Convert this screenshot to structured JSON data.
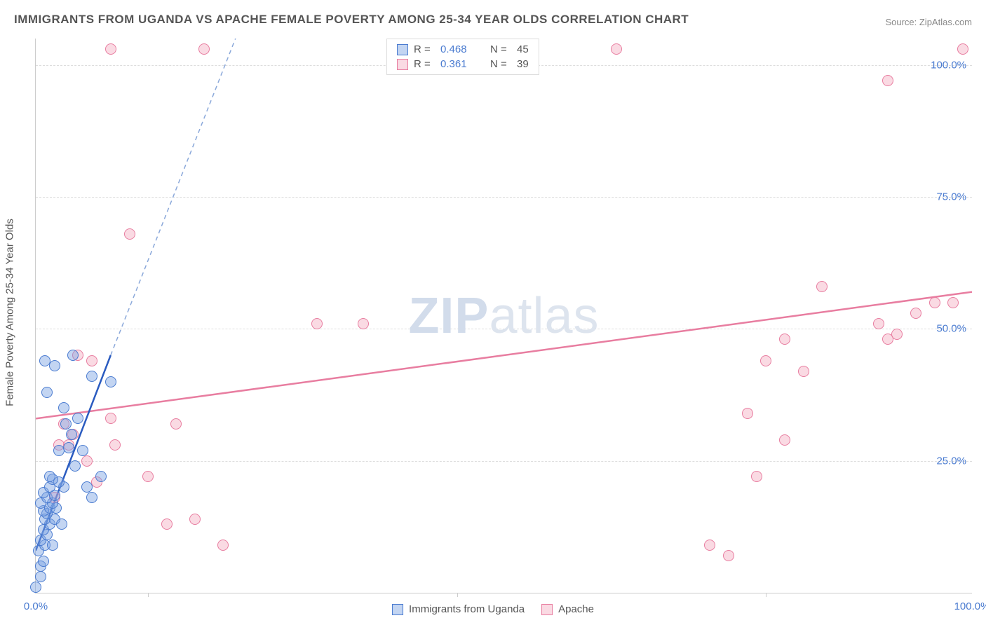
{
  "title": "IMMIGRANTS FROM UGANDA VS APACHE FEMALE POVERTY AMONG 25-34 YEAR OLDS CORRELATION CHART",
  "source": "Source: ZipAtlas.com",
  "ylabel": "Female Poverty Among 25-34 Year Olds",
  "watermark_a": "ZIP",
  "watermark_b": "atlas",
  "xlim": [
    0,
    100
  ],
  "ylim": [
    0,
    105
  ],
  "xticks": [
    {
      "pos": 0,
      "label": "0.0%"
    },
    {
      "pos": 100,
      "label": "100.0%"
    }
  ],
  "yticks": [
    {
      "pos": 25,
      "label": "25.0%"
    },
    {
      "pos": 50,
      "label": "50.0%"
    },
    {
      "pos": 75,
      "label": "75.0%"
    },
    {
      "pos": 100,
      "label": "100.0%"
    }
  ],
  "x_minor_ticks": [
    12,
    45,
    78
  ],
  "series": {
    "uganda": {
      "label": "Immigrants from Uganda",
      "color_fill": "rgba(122,162,226,0.45)",
      "color_stroke": "#4a7bd0",
      "R": "0.468",
      "N": "45",
      "trend": {
        "x1": 0,
        "y1": 8,
        "x2": 8,
        "y2": 45,
        "dash_x2": 28,
        "dash_y2": 135
      },
      "points": [
        [
          0,
          1
        ],
        [
          0.5,
          3
        ],
        [
          0.5,
          5
        ],
        [
          0.8,
          6
        ],
        [
          0.3,
          8
        ],
        [
          1,
          9
        ],
        [
          0.5,
          10
        ],
        [
          1.2,
          11
        ],
        [
          0.8,
          12
        ],
        [
          1.5,
          13
        ],
        [
          1,
          14
        ],
        [
          2,
          14
        ],
        [
          1.2,
          15
        ],
        [
          0.8,
          15.5
        ],
        [
          1.5,
          16
        ],
        [
          2.2,
          16
        ],
        [
          1.8,
          17
        ],
        [
          0.5,
          17
        ],
        [
          1.2,
          18
        ],
        [
          2,
          18.5
        ],
        [
          0.8,
          19
        ],
        [
          1.5,
          20
        ],
        [
          3,
          20
        ],
        [
          2.5,
          21
        ],
        [
          1.8,
          21.5
        ],
        [
          1.5,
          22
        ],
        [
          2.5,
          27
        ],
        [
          5,
          27
        ],
        [
          3.5,
          27.5
        ],
        [
          7,
          22
        ],
        [
          6,
          18
        ],
        [
          5.5,
          20
        ],
        [
          3.2,
          32
        ],
        [
          4.5,
          33
        ],
        [
          3,
          35
        ],
        [
          1.2,
          38
        ],
        [
          8,
          40
        ],
        [
          4,
          45
        ],
        [
          1,
          44
        ],
        [
          6,
          41
        ],
        [
          2,
          43
        ],
        [
          3.8,
          30
        ],
        [
          4.2,
          24
        ],
        [
          2.8,
          13
        ],
        [
          1.8,
          9
        ]
      ]
    },
    "apache": {
      "label": "Apache",
      "color_fill": "rgba(240,150,175,0.35)",
      "color_stroke": "#e87da0",
      "R": "0.361",
      "N": "39",
      "trend": {
        "x1": 0,
        "y1": 33,
        "x2": 100,
        "y2": 57
      },
      "points": [
        [
          2,
          18
        ],
        [
          2.5,
          28
        ],
        [
          3.5,
          28
        ],
        [
          4,
          30
        ],
        [
          3,
          32
        ],
        [
          5.5,
          25
        ],
        [
          6.5,
          21
        ],
        [
          8.5,
          28
        ],
        [
          8,
          33
        ],
        [
          4.5,
          45
        ],
        [
          6,
          44
        ],
        [
          12,
          22
        ],
        [
          14,
          13
        ],
        [
          17,
          14
        ],
        [
          20,
          9
        ],
        [
          15,
          32
        ],
        [
          10,
          68
        ],
        [
          30,
          51
        ],
        [
          35,
          51
        ],
        [
          8,
          103
        ],
        [
          18,
          103
        ],
        [
          62,
          103
        ],
        [
          99,
          103
        ],
        [
          91,
          97
        ],
        [
          72,
          9
        ],
        [
          74,
          7
        ],
        [
          77,
          22
        ],
        [
          78,
          44
        ],
        [
          76,
          34
        ],
        [
          80,
          29
        ],
        [
          80,
          48
        ],
        [
          82,
          42
        ],
        [
          84,
          58
        ],
        [
          90,
          51
        ],
        [
          91,
          48
        ],
        [
          92,
          49
        ],
        [
          94,
          53
        ],
        [
          96,
          55
        ],
        [
          98,
          55
        ]
      ]
    }
  },
  "legend_bottom": [
    {
      "key": "uganda"
    },
    {
      "key": "apache"
    }
  ],
  "colors": {
    "grid": "#dddddd",
    "axis": "#cccccc",
    "tick_text": "#4a7bd0",
    "title_text": "#555555"
  }
}
